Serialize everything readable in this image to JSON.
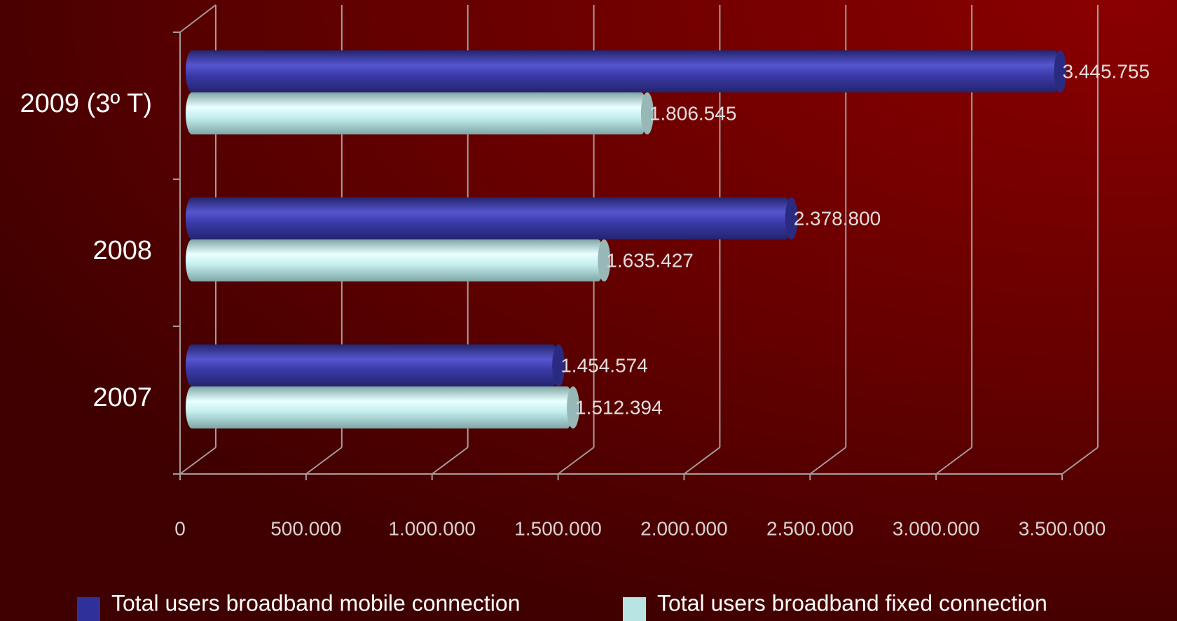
{
  "chart_data": {
    "type": "bar",
    "orientation": "horizontal",
    "categories": [
      "2009 (3º T)",
      "2008",
      "2007"
    ],
    "series": [
      {
        "name": "Total users broadband mobile connection",
        "color": "#3a3aa8",
        "values": [
          3445755,
          2378800,
          1454574
        ],
        "value_labels": [
          "3.445.755",
          "2.378.800",
          "1.454.574"
        ]
      },
      {
        "name": "Total users broadband fixed connection",
        "color": "#c4eeee",
        "values": [
          1806545,
          1635427,
          1512394
        ],
        "value_labels": [
          "1.806.545",
          "1.635.427",
          "1.512.394"
        ]
      }
    ],
    "xlim": [
      0,
      3500000
    ],
    "xticks": [
      0,
      {
        "value": 500000,
        "label": "500.000"
      },
      {
        "value": 1000000,
        "label": "1.000.000"
      },
      {
        "value": 1500000,
        "label": "1.500.000"
      },
      {
        "value": 2000000,
        "label": "2.000.000"
      },
      {
        "value": 2500000,
        "label": "2.500.000"
      },
      {
        "value": 3000000,
        "label": "3.000.000"
      },
      {
        "value": 3500000,
        "label": "3.500.000"
      }
    ],
    "grid": true,
    "legend": "bottom"
  }
}
